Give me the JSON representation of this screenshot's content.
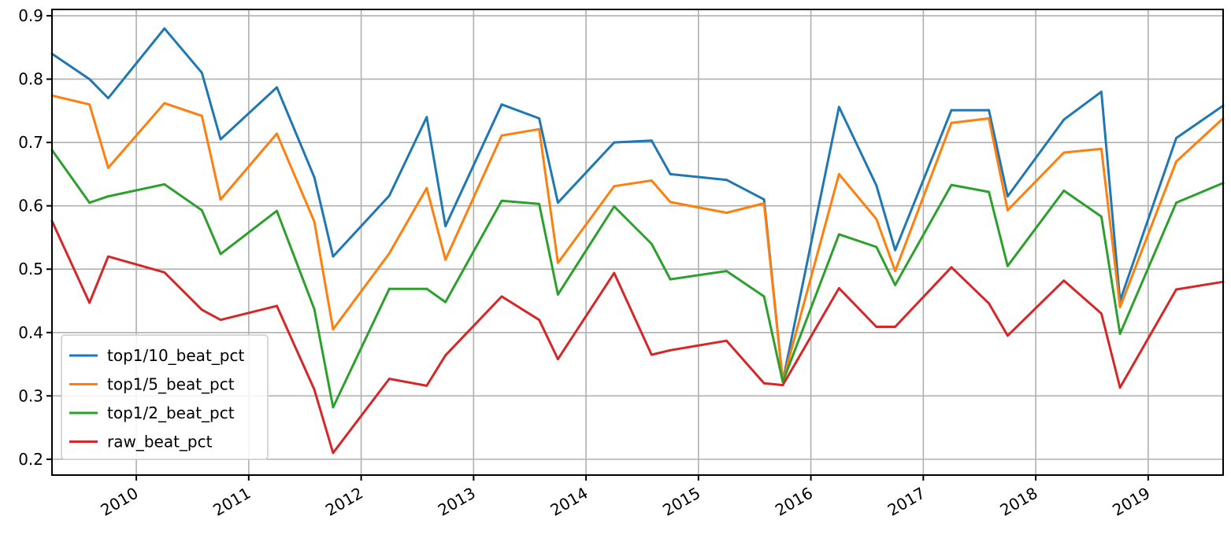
{
  "chart_data": {
    "type": "line",
    "title": "",
    "xlabel": "",
    "ylabel": "",
    "x_axis": {
      "kind": "date",
      "range": [
        "2009-04",
        "2019-09"
      ],
      "tick_labels": [
        "2010",
        "2011",
        "2012",
        "2013",
        "2014",
        "2015",
        "2016",
        "2017",
        "2018",
        "2019"
      ],
      "tick_dates": [
        "2010-01",
        "2011-01",
        "2012-01",
        "2013-01",
        "2014-01",
        "2015-01",
        "2016-01",
        "2017-01",
        "2018-01",
        "2019-01"
      ]
    },
    "y_axis": {
      "ylim": [
        0.175,
        0.91
      ],
      "ticks": [
        0.2,
        0.3,
        0.4,
        0.5,
        0.6,
        0.7,
        0.8,
        0.9
      ],
      "tick_labels": [
        "0.2",
        "0.3",
        "0.4",
        "0.5",
        "0.6",
        "0.7",
        "0.8",
        "0.9"
      ]
    },
    "grid": true,
    "legend_position": "lower-left",
    "x": [
      "2009-04",
      "2009-08",
      "2009-10",
      "2010-04",
      "2010-08",
      "2010-10",
      "2011-04",
      "2011-08",
      "2011-10",
      "2012-04",
      "2012-08",
      "2012-10",
      "2013-04",
      "2013-08",
      "2013-10",
      "2014-04",
      "2014-08",
      "2014-10",
      "2015-04",
      "2015-08",
      "2015-10",
      "2016-04",
      "2016-08",
      "2016-10",
      "2017-04",
      "2017-08",
      "2017-10",
      "2018-04",
      "2018-08",
      "2018-10",
      "2019-04",
      "2019-09"
    ],
    "series": [
      {
        "name": "top1/10_beat_pct",
        "color": "#1f77b4",
        "values": [
          0.84,
          0.8,
          0.77,
          0.88,
          0.81,
          0.705,
          0.787,
          0.645,
          0.52,
          0.616,
          0.74,
          0.568,
          0.76,
          0.738,
          0.605,
          0.7,
          0.703,
          0.65,
          0.641,
          0.61,
          0.323,
          0.756,
          0.632,
          0.53,
          0.751,
          0.751,
          0.615,
          0.736,
          0.78,
          0.45,
          0.707,
          0.758
        ]
      },
      {
        "name": "top1/5_beat_pct",
        "color": "#ff7f0e",
        "values": [
          0.774,
          0.76,
          0.66,
          0.762,
          0.742,
          0.61,
          0.714,
          0.575,
          0.405,
          0.525,
          0.628,
          0.515,
          0.711,
          0.721,
          0.51,
          0.631,
          0.64,
          0.606,
          0.589,
          0.604,
          0.323,
          0.65,
          0.579,
          0.497,
          0.731,
          0.738,
          0.593,
          0.684,
          0.69,
          0.44,
          0.67,
          0.738
        ]
      },
      {
        "name": "top1/2_beat_pct",
        "color": "#2ca02c",
        "values": [
          0.688,
          0.605,
          0.615,
          0.634,
          0.593,
          0.524,
          0.592,
          0.437,
          0.282,
          0.469,
          0.469,
          0.448,
          0.608,
          0.603,
          0.46,
          0.599,
          0.54,
          0.484,
          0.497,
          0.457,
          0.322,
          0.555,
          0.535,
          0.475,
          0.633,
          0.622,
          0.505,
          0.624,
          0.583,
          0.398,
          0.605,
          0.636
        ]
      },
      {
        "name": "raw_beat_pct",
        "color": "#d62728",
        "values": [
          0.576,
          0.447,
          0.52,
          0.495,
          0.436,
          0.42,
          0.442,
          0.31,
          0.21,
          0.327,
          0.316,
          0.364,
          0.457,
          0.42,
          0.358,
          0.494,
          0.365,
          0.372,
          0.387,
          0.32,
          0.317,
          0.47,
          0.409,
          0.409,
          0.503,
          0.446,
          0.395,
          0.482,
          0.43,
          0.313,
          0.468,
          0.48
        ]
      }
    ]
  }
}
